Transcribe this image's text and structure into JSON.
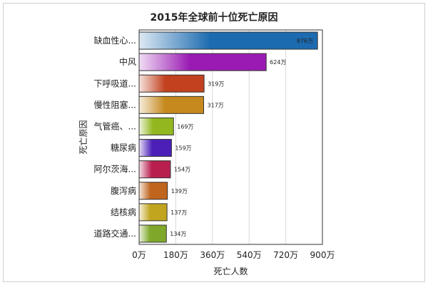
{
  "chart_data": {
    "type": "bar",
    "orientation": "horizontal",
    "title": "2015年全球前十位死亡原因",
    "xlabel": "死亡人数",
    "ylabel": "死亡原因",
    "unit": "万",
    "xlim": [
      0,
      900
    ],
    "xticks": [
      0,
      180,
      360,
      540,
      720,
      900
    ],
    "xtick_labels": [
      "0万",
      "180万",
      "360万",
      "540万",
      "720万",
      "900万"
    ],
    "grid": true,
    "categories": [
      "缺血性心...",
      "中风",
      "下呼吸道...",
      "慢性阻塞...",
      "气管癌、...",
      "糖尿病",
      "阿尔茨海...",
      "腹泻病",
      "结核病",
      "道路交通..."
    ],
    "values": [
      876,
      624,
      319,
      317,
      169,
      159,
      154,
      139,
      137,
      134
    ],
    "value_labels": [
      "876万",
      "624万",
      "319万",
      "317万",
      "169万",
      "159万",
      "154万",
      "139万",
      "137万",
      "134万"
    ],
    "colors": [
      "#1c6bb0",
      "#9a1bb4",
      "#c2411f",
      "#c6891e",
      "#93b81f",
      "#4b1fb8",
      "#b81f4f",
      "#c0651e",
      "#c2a51e",
      "#7fa82a"
    ]
  }
}
